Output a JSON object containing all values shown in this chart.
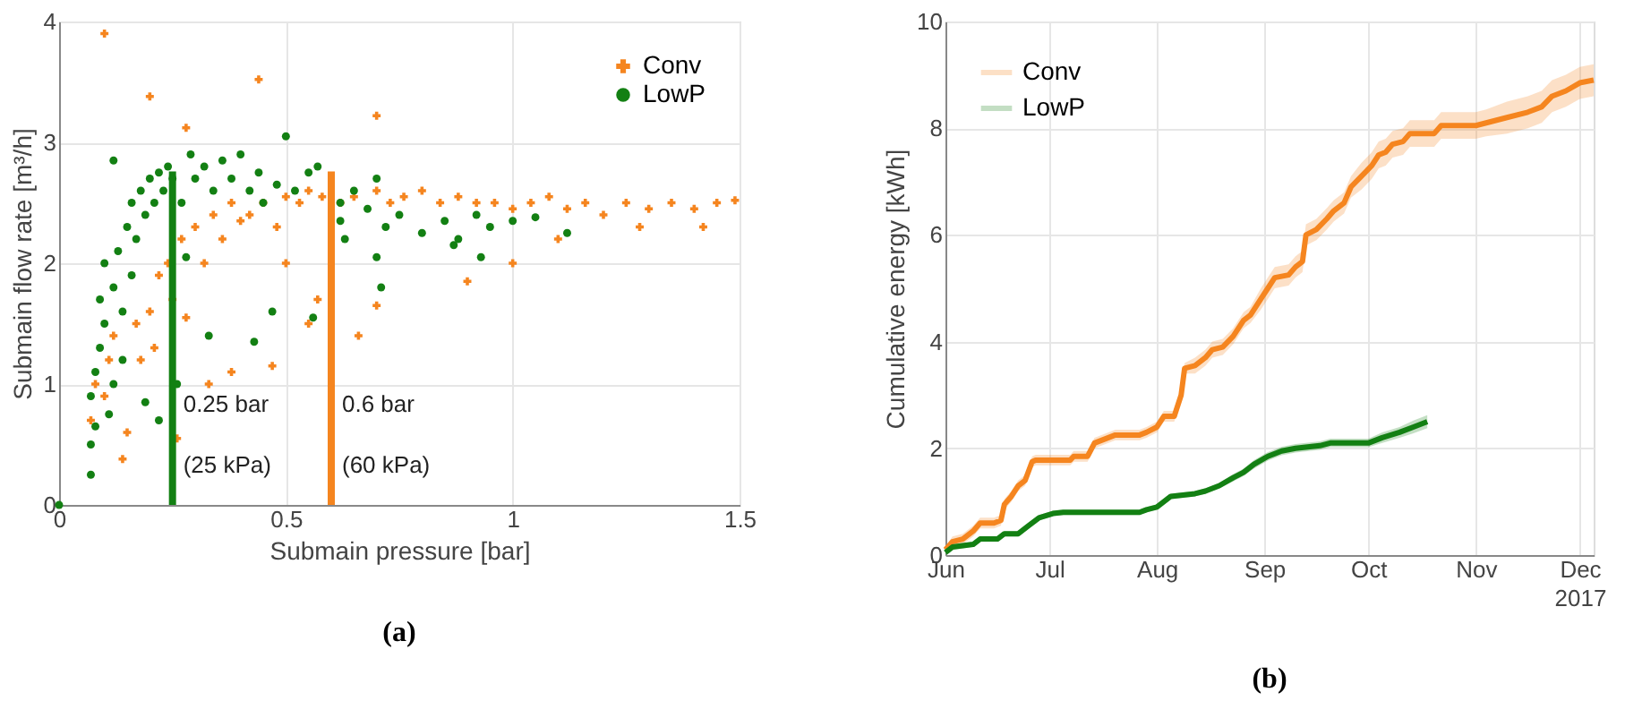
{
  "chart_data": [
    {
      "type": "scatter",
      "xlabel": "Submain pressure [bar]",
      "ylabel": "Submain flow rate [m³/h]",
      "xlim": [
        0,
        1.5
      ],
      "xticks": [
        0,
        0.5,
        1,
        1.5
      ],
      "ylim": [
        0,
        4
      ],
      "yticks": [
        0,
        1,
        2,
        3,
        4
      ],
      "grid": true,
      "legend": "top right",
      "annotations": [
        "(a)"
      ],
      "ref_lines": [
        {
          "axis": "x",
          "value": 0.25,
          "label": "0.25 bar\n(25 kPa)",
          "color": "#138013"
        },
        {
          "axis": "x",
          "value": 0.6,
          "label": "0.6 bar\n(60 kPa)",
          "color": "#f5851f"
        }
      ],
      "series": [
        {
          "name": "Conv",
          "color": "#f5851f",
          "marker": "cross",
          "x": [
            0.1,
            0.2,
            0.28,
            0.44,
            0.7,
            0.07,
            0.08,
            0.1,
            0.11,
            0.14,
            0.15,
            0.17,
            0.18,
            0.2,
            0.21,
            0.22,
            0.24,
            0.25,
            0.27,
            0.28,
            0.3,
            0.32,
            0.34,
            0.36,
            0.38,
            0.4,
            0.42,
            0.45,
            0.48,
            0.5,
            0.53,
            0.55,
            0.58,
            0.62,
            0.65,
            0.7,
            0.73,
            0.76,
            0.8,
            0.84,
            0.88,
            0.92,
            0.96,
            1.0,
            1.04,
            1.08,
            1.12,
            1.16,
            1.2,
            1.25,
            1.3,
            1.35,
            1.4,
            1.45,
            1.49,
            1.0,
            0.9,
            0.66,
            0.47,
            0.38,
            0.5,
            0.57,
            0.7,
            0.55,
            0.33,
            0.26,
            0.12,
            1.42,
            1.1,
            1.28
          ],
          "values": [
            3.9,
            3.38,
            3.12,
            3.52,
            3.22,
            0.7,
            1.0,
            0.9,
            1.2,
            0.38,
            0.6,
            1.5,
            1.2,
            1.6,
            1.3,
            1.9,
            2.0,
            1.7,
            2.2,
            1.55,
            2.3,
            2.0,
            2.4,
            2.2,
            2.5,
            2.35,
            2.4,
            2.5,
            2.3,
            2.55,
            2.5,
            2.6,
            2.55,
            2.5,
            2.55,
            2.6,
            2.5,
            2.55,
            2.6,
            2.5,
            2.55,
            2.5,
            2.5,
            2.45,
            2.5,
            2.55,
            2.45,
            2.5,
            2.4,
            2.5,
            2.45,
            2.5,
            2.45,
            2.5,
            2.52,
            2.0,
            1.85,
            1.4,
            1.15,
            1.1,
            2.0,
            1.7,
            1.65,
            1.5,
            1.0,
            0.55,
            1.4,
            2.3,
            2.2,
            2.3
          ]
        },
        {
          "name": "LowP",
          "color": "#138013",
          "marker": "circle",
          "x": [
            0.07,
            0.07,
            0.08,
            0.07,
            0.08,
            0.09,
            0.1,
            0.09,
            0.1,
            0.11,
            0.12,
            0.12,
            0.13,
            0.14,
            0.14,
            0.15,
            0.16,
            0.16,
            0.17,
            0.18,
            0.19,
            0.2,
            0.21,
            0.22,
            0.23,
            0.24,
            0.25,
            0.12,
            0.22,
            0.19,
            0.26,
            0.27,
            0.29,
            0.3,
            0.32,
            0.34,
            0.36,
            0.38,
            0.4,
            0.42,
            0.44,
            0.45,
            0.48,
            0.5,
            0.52,
            0.55,
            0.57,
            0.62,
            0.62,
            0.65,
            0.68,
            0.7,
            0.72,
            0.75,
            0.8,
            0.85,
            0.88,
            0.92,
            0.95,
            1.0,
            1.05,
            1.12,
            0.7,
            0.71,
            0.47,
            0.56,
            0.43,
            0.33,
            0.87,
            0.93,
            0.0,
            0.63,
            0.28
          ],
          "values": [
            0.25,
            0.5,
            0.65,
            0.9,
            1.1,
            1.3,
            1.5,
            1.7,
            2.0,
            0.75,
            1.0,
            1.8,
            2.1,
            1.2,
            1.6,
            2.3,
            1.9,
            2.5,
            2.2,
            2.6,
            2.4,
            2.7,
            2.5,
            2.75,
            2.6,
            2.8,
            2.7,
            2.85,
            0.7,
            0.85,
            1.0,
            2.5,
            2.9,
            2.7,
            2.8,
            2.6,
            2.85,
            2.7,
            2.9,
            2.6,
            2.75,
            2.5,
            2.65,
            3.05,
            2.6,
            2.75,
            2.8,
            2.5,
            2.35,
            2.6,
            2.45,
            2.7,
            2.3,
            2.4,
            2.25,
            2.35,
            2.2,
            2.4,
            2.3,
            2.35,
            2.38,
            2.25,
            2.05,
            1.8,
            1.6,
            1.55,
            1.35,
            1.4,
            2.15,
            2.05,
            0.0,
            2.2,
            2.05
          ]
        }
      ]
    },
    {
      "type": "line",
      "ylabel": "Cumulative energy [kWh]",
      "xlim": [
        "2017-06-01",
        "2017-12-05"
      ],
      "xticks": [
        {
          "value": "2017-06-01",
          "label": "Jun"
        },
        {
          "value": "2017-07-01",
          "label": "Jul"
        },
        {
          "value": "2017-08-01",
          "label": "Aug"
        },
        {
          "value": "2017-09-01",
          "label": "Sep"
        },
        {
          "value": "2017-10-01",
          "label": "Oct"
        },
        {
          "value": "2017-11-01",
          "label": "Nov"
        },
        {
          "value": "2017-12-01",
          "label": "Dec\n2017"
        }
      ],
      "ylim": [
        0,
        10
      ],
      "yticks": [
        0,
        2,
        4,
        6,
        8,
        10
      ],
      "grid": true,
      "legend": "top left",
      "annotations": [
        "(b)"
      ],
      "series": [
        {
          "name": "Conv",
          "color": "#f5851f",
          "x": [
            "2017-06-01",
            "2017-06-03",
            "2017-06-06",
            "2017-06-09",
            "2017-06-11",
            "2017-06-15",
            "2017-06-17",
            "2017-06-18",
            "2017-06-20",
            "2017-06-22",
            "2017-06-24",
            "2017-06-26",
            "2017-06-27",
            "2017-07-07",
            "2017-07-08",
            "2017-07-12",
            "2017-07-14",
            "2017-07-18",
            "2017-07-20",
            "2017-07-27",
            "2017-07-29",
            "2017-08-01",
            "2017-08-03",
            "2017-08-06",
            "2017-08-08",
            "2017-08-09",
            "2017-08-12",
            "2017-08-15",
            "2017-08-17",
            "2017-08-20",
            "2017-08-23",
            "2017-08-26",
            "2017-08-28",
            "2017-08-31",
            "2017-09-02",
            "2017-09-04",
            "2017-09-08",
            "2017-09-10",
            "2017-09-12",
            "2017-09-13",
            "2017-09-16",
            "2017-09-19",
            "2017-09-21",
            "2017-09-24",
            "2017-09-26",
            "2017-09-29",
            "2017-10-02",
            "2017-10-04",
            "2017-10-06",
            "2017-10-08",
            "2017-10-11",
            "2017-10-13",
            "2017-10-20",
            "2017-10-22",
            "2017-11-01",
            "2017-11-04",
            "2017-11-10",
            "2017-11-16",
            "2017-11-20",
            "2017-11-23",
            "2017-11-27",
            "2017-12-01",
            "2017-12-05"
          ],
          "values": [
            0.1,
            0.25,
            0.3,
            0.45,
            0.6,
            0.6,
            0.65,
            0.95,
            1.1,
            1.3,
            1.4,
            1.75,
            1.78,
            1.78,
            1.85,
            1.85,
            2.1,
            2.2,
            2.25,
            2.25,
            2.3,
            2.4,
            2.6,
            2.6,
            3.0,
            3.5,
            3.55,
            3.7,
            3.85,
            3.9,
            4.1,
            4.4,
            4.5,
            4.8,
            5.0,
            5.2,
            5.25,
            5.4,
            5.5,
            6.0,
            6.1,
            6.3,
            6.45,
            6.6,
            6.9,
            7.1,
            7.3,
            7.5,
            7.55,
            7.7,
            7.75,
            7.9,
            7.9,
            8.05,
            8.05,
            8.1,
            8.2,
            8.3,
            8.4,
            8.6,
            8.7,
            8.85,
            8.9
          ],
          "lower": [
            0.05,
            0.15,
            0.2,
            0.35,
            0.5,
            0.5,
            0.55,
            0.85,
            1.0,
            1.2,
            1.3,
            1.65,
            1.68,
            1.68,
            1.75,
            1.75,
            2.0,
            2.1,
            2.15,
            2.15,
            2.2,
            2.3,
            2.5,
            2.5,
            2.9,
            3.4,
            3.4,
            3.55,
            3.7,
            3.75,
            3.95,
            4.25,
            4.35,
            4.6,
            4.8,
            5.0,
            5.05,
            5.2,
            5.3,
            5.8,
            5.9,
            6.1,
            6.25,
            6.4,
            6.7,
            6.85,
            7.05,
            7.25,
            7.3,
            7.45,
            7.5,
            7.65,
            7.65,
            7.8,
            7.8,
            7.85,
            7.9,
            8.0,
            8.1,
            8.3,
            8.4,
            8.55,
            8.6
          ],
          "upper": [
            0.15,
            0.35,
            0.4,
            0.55,
            0.7,
            0.7,
            0.75,
            1.05,
            1.2,
            1.4,
            1.5,
            1.85,
            1.88,
            1.88,
            1.95,
            1.95,
            2.2,
            2.3,
            2.35,
            2.35,
            2.4,
            2.5,
            2.7,
            2.7,
            3.1,
            3.6,
            3.7,
            3.85,
            4.0,
            4.05,
            4.25,
            4.55,
            4.65,
            5.0,
            5.2,
            5.4,
            5.45,
            5.6,
            5.7,
            6.2,
            6.3,
            6.5,
            6.65,
            6.8,
            7.1,
            7.35,
            7.55,
            7.75,
            7.8,
            7.95,
            8.0,
            8.15,
            8.15,
            8.3,
            8.3,
            8.35,
            8.5,
            8.6,
            8.7,
            8.9,
            9.0,
            9.15,
            9.2
          ]
        },
        {
          "name": "LowP",
          "color": "#138013",
          "x": [
            "2017-06-01",
            "2017-06-03",
            "2017-06-09",
            "2017-06-11",
            "2017-06-16",
            "2017-06-18",
            "2017-06-22",
            "2017-06-25",
            "2017-06-28",
            "2017-07-02",
            "2017-07-05",
            "2017-07-27",
            "2017-07-29",
            "2017-08-01",
            "2017-08-05",
            "2017-08-12",
            "2017-08-15",
            "2017-08-19",
            "2017-08-23",
            "2017-08-26",
            "2017-08-29",
            "2017-09-02",
            "2017-09-06",
            "2017-09-10",
            "2017-09-17",
            "2017-09-20",
            "2017-10-01",
            "2017-10-05",
            "2017-10-10",
            "2017-10-14",
            "2017-10-18"
          ],
          "values": [
            0.05,
            0.15,
            0.2,
            0.3,
            0.3,
            0.4,
            0.4,
            0.55,
            0.7,
            0.78,
            0.8,
            0.8,
            0.85,
            0.9,
            1.1,
            1.15,
            1.2,
            1.3,
            1.45,
            1.55,
            1.7,
            1.85,
            1.95,
            2.0,
            2.05,
            2.1,
            2.1,
            2.2,
            2.3,
            2.4,
            2.5
          ],
          "lower": [
            0.0,
            0.1,
            0.15,
            0.25,
            0.25,
            0.35,
            0.35,
            0.5,
            0.65,
            0.73,
            0.75,
            0.75,
            0.8,
            0.85,
            1.05,
            1.1,
            1.15,
            1.25,
            1.38,
            1.48,
            1.62,
            1.77,
            1.87,
            1.92,
            1.97,
            2.02,
            2.02,
            2.1,
            2.2,
            2.28,
            2.38
          ],
          "upper": [
            0.1,
            0.2,
            0.25,
            0.35,
            0.35,
            0.45,
            0.45,
            0.6,
            0.75,
            0.83,
            0.85,
            0.85,
            0.9,
            0.95,
            1.15,
            1.2,
            1.25,
            1.35,
            1.52,
            1.62,
            1.78,
            1.93,
            2.03,
            2.08,
            2.13,
            2.18,
            2.18,
            2.3,
            2.4,
            2.52,
            2.62
          ]
        }
      ]
    }
  ]
}
